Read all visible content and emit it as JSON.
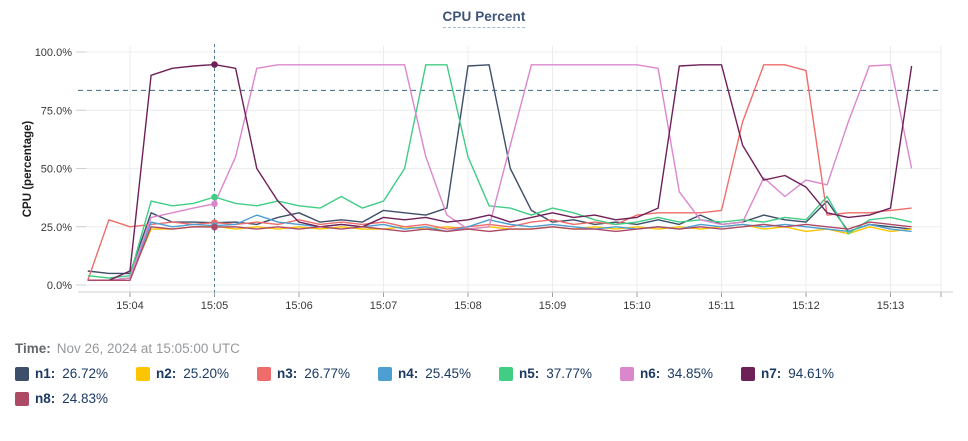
{
  "header": {
    "title": "CPU Percent"
  },
  "tooltip": {
    "time_label": "Time:",
    "time_value": "Nov 26, 2024 at 15:05:00 UTC"
  },
  "colors": {
    "grid": "#ececec",
    "axis_line": "#cfcfcf",
    "tick_mark": "#9f9f9f",
    "guide": "#4e7d94",
    "title_text": "#3d5377",
    "legend_text": "#1b3a63"
  },
  "legend": {
    "items": [
      {
        "name": "n1",
        "label": "n1:",
        "value": "26.72%",
        "color": "#3e4f69"
      },
      {
        "name": "n2",
        "label": "n2:",
        "value": "25.20%",
        "color": "#fdc400"
      },
      {
        "name": "n3",
        "label": "n3:",
        "value": "26.77%",
        "color": "#ee6d6a"
      },
      {
        "name": "n4",
        "label": "n4:",
        "value": "25.45%",
        "color": "#4e9fd1"
      },
      {
        "name": "n5",
        "label": "n5:",
        "value": "37.77%",
        "color": "#41cd84"
      },
      {
        "name": "n6",
        "label": "n6:",
        "value": "34.85%",
        "color": "#db87cc"
      },
      {
        "name": "n7",
        "label": "n7:",
        "value": "94.61%",
        "color": "#6e2158"
      },
      {
        "name": "n8",
        "label": "n8:",
        "value": "24.83%",
        "color": "#ad4a66"
      }
    ]
  },
  "chart_data": {
    "type": "line",
    "title": "CPU Percent",
    "xlabel": "",
    "ylabel": "CPU (percentage)",
    "ylim": [
      0,
      100
    ],
    "grid": true,
    "legend_position": "bottom",
    "y_ticks": [
      {
        "label": "100.0%",
        "value": 100
      },
      {
        "label": "75.0%",
        "value": 75
      },
      {
        "label": "50.0%",
        "value": 50
      },
      {
        "label": "25.0%",
        "value": 25
      },
      {
        "label": "0.0%",
        "value": 0
      }
    ],
    "x_ticks": [
      {
        "label": "15:04",
        "minute": 0
      },
      {
        "label": "15:05",
        "minute": 1
      },
      {
        "label": "15:06",
        "minute": 2
      },
      {
        "label": "15:07",
        "minute": 3
      },
      {
        "label": "15:08",
        "minute": 4
      },
      {
        "label": "15:09",
        "minute": 5
      },
      {
        "label": "15:10",
        "minute": 6
      },
      {
        "label": "15:11",
        "minute": 7
      },
      {
        "label": "15:12",
        "minute": 8
      },
      {
        "label": "15:13",
        "minute": 9
      }
    ],
    "threshold_line": {
      "value": 83.5,
      "style": "dashed"
    },
    "crosshair": {
      "time": "15:05:00",
      "minute": 1,
      "style": "dashed"
    },
    "x_start_seconds": -30,
    "x_step_seconds": 15,
    "series": [
      {
        "name": "n1",
        "color": "#3e4f69",
        "values": [
          6,
          5,
          5,
          31,
          27,
          27,
          26.72,
          27,
          26,
          29,
          31,
          27,
          28,
          27,
          32,
          31,
          30,
          33,
          94,
          94.5,
          50,
          32,
          27,
          28,
          26,
          27,
          26,
          28,
          26,
          30,
          26,
          27,
          30,
          28,
          27,
          36,
          23,
          26,
          25,
          24
        ]
      },
      {
        "name": "n2",
        "color": "#fdc400",
        "values": [
          2,
          2,
          3,
          24,
          24,
          25,
          25.2,
          24,
          25,
          24,
          25,
          24,
          25,
          24,
          24,
          25,
          24,
          25,
          24,
          25,
          24,
          24,
          25,
          24,
          25,
          24,
          25,
          24,
          25,
          24,
          25,
          26,
          24,
          25,
          23,
          24,
          22,
          25,
          23,
          24
        ]
      },
      {
        "name": "n3",
        "color": "#ee6d6a",
        "values": [
          2,
          28,
          25,
          26,
          27,
          26,
          26.77,
          26,
          27,
          26,
          28,
          26,
          27,
          26,
          27,
          25,
          26,
          24,
          25,
          26,
          25,
          27,
          28,
          26,
          27,
          26,
          30,
          31,
          31,
          31,
          32,
          70,
          94.5,
          94.5,
          92,
          30,
          31,
          31,
          32,
          33
        ]
      },
      {
        "name": "n4",
        "color": "#4e9fd1",
        "values": [
          2,
          2,
          3,
          27,
          25,
          26,
          25.45,
          26,
          30,
          27,
          26,
          25,
          26,
          25,
          26,
          24,
          25,
          23,
          25,
          28,
          26,
          25,
          26,
          25,
          24,
          25,
          24,
          25,
          24,
          26,
          25,
          26,
          25,
          26,
          25,
          24,
          23,
          26,
          24,
          23
        ]
      },
      {
        "name": "n5",
        "color": "#41cd84",
        "values": [
          4,
          3,
          4,
          36,
          34,
          35,
          37.77,
          35,
          34,
          36,
          34,
          33,
          38,
          33,
          36,
          50,
          94.5,
          94.5,
          55,
          34,
          33,
          30,
          33,
          31,
          28,
          26,
          27,
          29,
          27,
          28,
          27,
          28,
          27,
          29,
          28,
          38,
          22,
          28,
          29,
          27
        ]
      },
      {
        "name": "n6",
        "color": "#db87cc",
        "values": [
          2,
          2,
          3,
          29,
          31,
          33,
          34.85,
          55,
          93,
          94.5,
          94.5,
          94.5,
          94.5,
          94.5,
          94.5,
          94.5,
          55,
          30,
          24,
          25,
          60,
          94.5,
          94.5,
          94.5,
          94.5,
          94.5,
          94.5,
          93,
          40,
          28,
          26,
          27,
          46,
          38,
          45,
          43,
          70,
          94,
          94.5,
          50
        ]
      },
      {
        "name": "n7",
        "color": "#6e2158",
        "values": [
          2,
          2,
          6,
          90,
          93,
          94,
          94.61,
          93,
          50,
          36,
          27,
          25,
          26,
          25,
          29,
          28,
          29,
          27,
          28,
          30,
          27,
          29,
          31,
          29,
          30,
          28,
          29,
          33,
          94,
          94.5,
          94.5,
          60,
          45,
          47,
          42,
          31,
          29,
          30,
          33,
          94
        ]
      },
      {
        "name": "n8",
        "color": "#ad4a66",
        "values": [
          2,
          2,
          2,
          25,
          24,
          25,
          24.83,
          25,
          24,
          25,
          24,
          25,
          24,
          25,
          24,
          23,
          24,
          23,
          24,
          23,
          24,
          24,
          25,
          24,
          24,
          23,
          24,
          25,
          24,
          25,
          24,
          25,
          26,
          25,
          26,
          25,
          24,
          27,
          26,
          25
        ]
      }
    ]
  }
}
